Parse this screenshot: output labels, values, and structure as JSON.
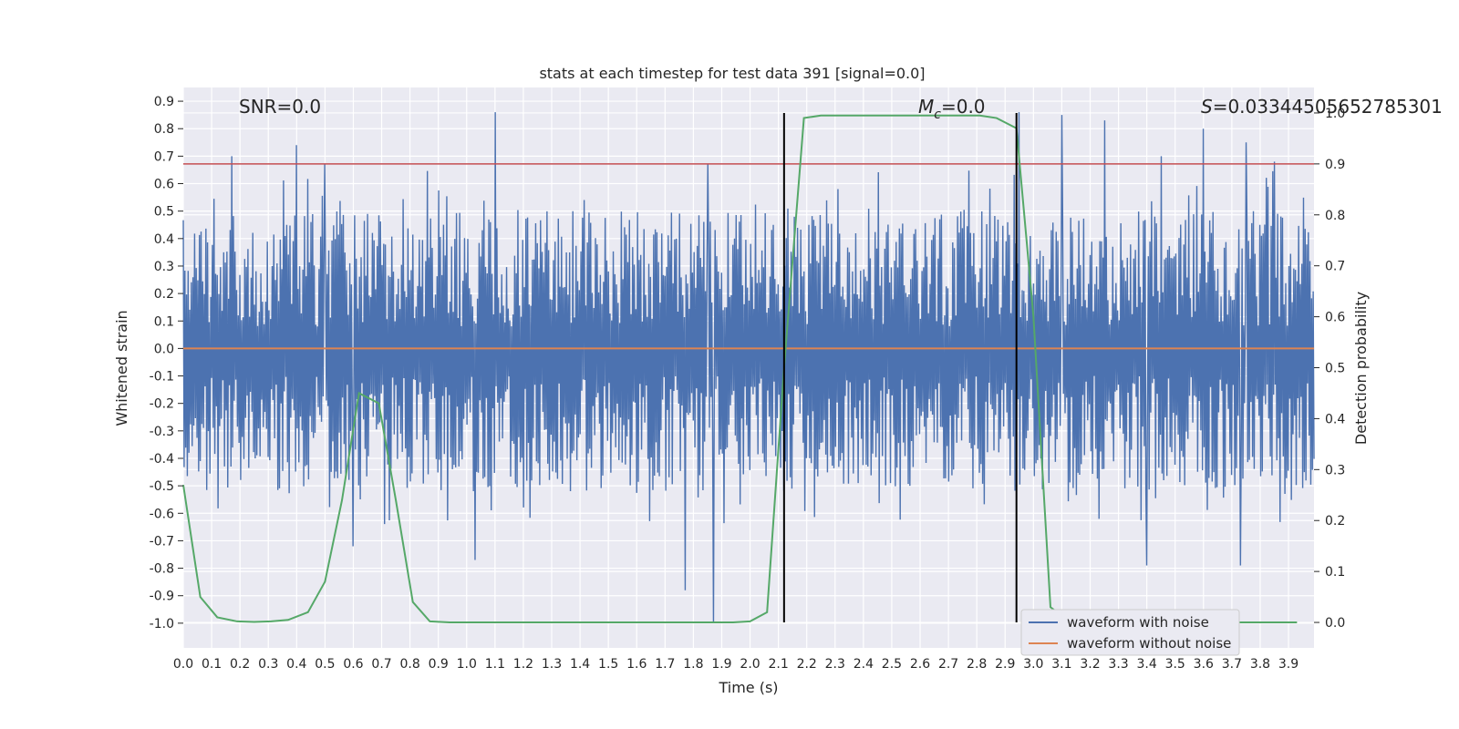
{
  "chart_data": {
    "type": "line",
    "title": "stats at each timestep for test data 391 [signal=0.0]",
    "xlabel": "Time (s)",
    "ylabel": "Whitened strain",
    "y2label": "Detection probability",
    "xlim": [
      0.0,
      3.99
    ],
    "ylim": [
      -1.09,
      0.95
    ],
    "y2lim": [
      -0.05,
      1.05
    ],
    "x_ticks": [
      "0.0",
      "0.1",
      "0.2",
      "0.3",
      "0.4",
      "0.5",
      "0.6",
      "0.7",
      "0.8",
      "0.9",
      "1.0",
      "1.1",
      "1.2",
      "1.3",
      "1.4",
      "1.5",
      "1.6",
      "1.7",
      "1.8",
      "1.9",
      "2.0",
      "2.1",
      "2.2",
      "2.3",
      "2.4",
      "2.5",
      "2.6",
      "2.7",
      "2.8",
      "2.9",
      "3.0",
      "3.1",
      "3.2",
      "3.3",
      "3.4",
      "3.5",
      "3.6",
      "3.7",
      "3.8",
      "3.9"
    ],
    "y_ticks": [
      "0.9",
      "0.8",
      "0.7",
      "0.6",
      "0.5",
      "0.4",
      "0.3",
      "0.2",
      "0.1",
      "0.0",
      "-0.1",
      "-0.2",
      "-0.3",
      "-0.4",
      "-0.5",
      "-0.6",
      "-0.7",
      "-0.8",
      "-0.9",
      "-1.0"
    ],
    "y2_ticks": [
      "1.0",
      "0.9",
      "0.8",
      "0.7",
      "0.6",
      "0.5",
      "0.4",
      "0.3",
      "0.2",
      "0.1",
      "0.0"
    ],
    "annotations": {
      "snr_label": "SNR=0.0",
      "mc_symbol": "M",
      "mc_sub": "c",
      "mc_value": "=0.0",
      "s_symbol": "S",
      "s_value": "=0.03344505652785301"
    },
    "threshold_y2": 0.9,
    "vertical_lines_x": [
      2.12,
      2.94
    ],
    "noise_envelope": {
      "description": "dense random whitened-strain noise, approx. ±0.3 core with spikes to ±0.8",
      "peak_times": [
        0.17,
        0.4,
        0.5,
        1.1,
        1.85,
        2.95,
        3.1,
        3.25,
        3.45,
        3.6,
        3.75,
        3.85
      ],
      "peak_values": [
        0.7,
        0.74,
        0.67,
        0.86,
        0.67,
        0.86,
        0.85,
        0.83,
        0.7,
        0.8,
        0.75,
        0.68
      ],
      "trough_times": [
        0.6,
        1.03,
        1.77,
        1.87,
        3.4,
        3.73
      ],
      "trough_values": [
        -0.72,
        -0.77,
        -0.88,
        -1.0,
        -0.79,
        -0.79
      ]
    },
    "series": [
      {
        "name": "waveform with noise",
        "color": "#4c72b0",
        "axis": "left"
      },
      {
        "name": "waveform without noise",
        "color": "#dd8452",
        "axis": "left",
        "x": [
          0.0,
          3.99
        ],
        "y": [
          0.0,
          0.0
        ]
      },
      {
        "name": "detection probability",
        "color": "#55a868",
        "axis": "right",
        "x": [
          0.0,
          0.06,
          0.12,
          0.19,
          0.25,
          0.31,
          0.37,
          0.44,
          0.5,
          0.56,
          0.62,
          0.69,
          0.75,
          0.81,
          0.87,
          0.94,
          1.0,
          1.06,
          1.12,
          1.19,
          1.25,
          1.31,
          1.37,
          1.44,
          1.5,
          1.56,
          1.62,
          1.69,
          1.75,
          1.81,
          1.87,
          1.94,
          2.0,
          2.06,
          2.12,
          2.19,
          2.25,
          2.31,
          2.37,
          2.44,
          2.5,
          2.56,
          2.62,
          2.69,
          2.75,
          2.81,
          2.87,
          2.94,
          3.0,
          3.06,
          3.12,
          3.19,
          3.25,
          3.31,
          3.37,
          3.44,
          3.5,
          3.56,
          3.62,
          3.69,
          3.75,
          3.81,
          3.87,
          3.93
        ],
        "y": [
          0.27,
          0.05,
          0.01,
          0.002,
          0.001,
          0.002,
          0.005,
          0.02,
          0.08,
          0.24,
          0.45,
          0.43,
          0.24,
          0.04,
          0.002,
          0.0,
          0.0,
          0.0,
          0.0,
          0.0,
          0.0,
          0.0,
          0.0,
          0.0,
          0.0,
          0.0,
          0.0,
          0.0,
          0.0,
          0.0,
          0.0,
          0.0,
          0.002,
          0.02,
          0.5,
          0.99,
          0.995,
          0.995,
          0.995,
          0.995,
          0.995,
          0.995,
          0.995,
          0.995,
          0.995,
          0.995,
          0.99,
          0.97,
          0.6,
          0.03,
          0.005,
          0.001,
          0.0,
          0.0,
          0.0,
          0.0,
          0.0,
          0.0,
          0.0,
          0.0,
          0.0,
          0.0,
          0.0,
          0.0
        ]
      },
      {
        "name": "threshold",
        "color": "#c44e52",
        "axis": "right",
        "x": [
          0.0,
          3.99
        ],
        "y": [
          0.9,
          0.9
        ]
      }
    ],
    "legend": {
      "placement": "lower-right",
      "entries": [
        {
          "label": "waveform with noise",
          "color": "#4c72b0"
        },
        {
          "label": "waveform without noise",
          "color": "#dd8452"
        }
      ]
    }
  }
}
